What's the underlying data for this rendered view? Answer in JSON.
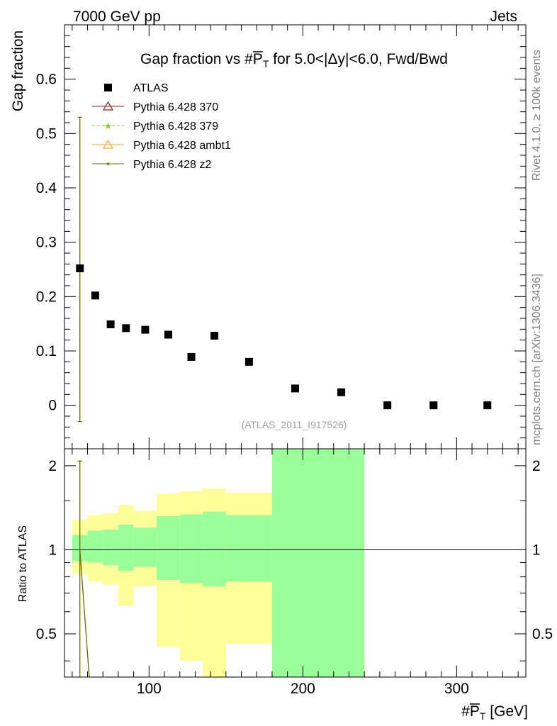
{
  "header": {
    "left": "7000 GeV pp",
    "right": "Jets"
  },
  "side_labels": {
    "rivet": "Rivet 4.1.0, ≥ 100k events",
    "mcplots": "mcplots.cern.ch [arXiv:1306.3436]"
  },
  "colors": {
    "data": "#000000",
    "p370": "#8b1a1a",
    "p379": "#7ccd32",
    "ambt1": "#f5a623",
    "z2": "#6b6b00",
    "band_inner": "#99ff99",
    "band_outer": "#ffff99"
  },
  "chart_data": [
    {
      "type": "scatter",
      "title_prefix": "Gap fraction vs #",
      "title_var": "P",
      "title_sub": "T",
      "title_suffix": " for 5.0<|Δy|<6.0, Fwd/Bwd",
      "ylabel": "Gap fraction",
      "watermark": "(ATLAS_2011_I917526)",
      "xlim": [
        45,
        345
      ],
      "ylim": [
        -0.08,
        0.7
      ],
      "yticks": [
        0,
        0.1,
        0.2,
        0.3,
        0.4,
        0.5,
        0.6
      ],
      "ytick_labels": [
        "0",
        "0.1",
        "0.2",
        "0.3",
        "0.4",
        "0.5",
        "0.6"
      ],
      "legend": [
        {
          "label": "ATLAS",
          "style": "square"
        },
        {
          "label": "Pythia 6.428 370",
          "style": "triangle"
        },
        {
          "label": "Pythia 6.428 379",
          "style": "star-dashed"
        },
        {
          "label": "Pythia 6.428 ambt1",
          "style": "triangle-line"
        },
        {
          "label": "Pythia 6.428 z2",
          "style": "dot-line"
        }
      ],
      "series": [
        {
          "name": "ATLAS",
          "x": [
            55,
            65,
            75,
            85,
            97.5,
            112.5,
            127.5,
            142.5,
            165,
            195,
            225,
            255,
            285,
            320
          ],
          "y": [
            0.252,
            0.202,
            0.149,
            0.142,
            0.139,
            0.13,
            0.089,
            0.128,
            0.08,
            0.031,
            0.024,
            0.0,
            0.0,
            0.0
          ]
        },
        {
          "name": "Pythia 6.428 z2",
          "x": [
            55
          ],
          "y": [
            0.252
          ],
          "yerr_low": [
            -0.03
          ],
          "yerr_high": [
            0.53
          ]
        }
      ]
    },
    {
      "type": "area",
      "ylabel": "Ratio to ATLAS",
      "xlabel_prefix": "#",
      "xlabel_var": "P",
      "xlabel_sub": "T",
      "xlabel_suffix": " [GeV]",
      "xlim": [
        45,
        345
      ],
      "ylim": [
        0.35,
        2.3
      ],
      "xticks": [
        100,
        200,
        300
      ],
      "xtick_labels": [
        "100",
        "200",
        "300"
      ],
      "yticks": [
        0.5,
        1,
        2
      ],
      "ytick_labels": [
        "0.5",
        "1",
        "2"
      ],
      "bins": [
        {
          "lo": 50,
          "hi": 60,
          "inner": [
            0.91,
            1.13
          ],
          "outer": [
            0.82,
            1.28
          ]
        },
        {
          "lo": 60,
          "hi": 70,
          "inner": [
            0.9,
            1.17
          ],
          "outer": [
            0.77,
            1.33
          ]
        },
        {
          "lo": 70,
          "hi": 80,
          "inner": [
            0.88,
            1.18
          ],
          "outer": [
            0.75,
            1.35
          ]
        },
        {
          "lo": 80,
          "hi": 90,
          "inner": [
            0.84,
            1.23
          ],
          "outer": [
            0.63,
            1.45
          ]
        },
        {
          "lo": 90,
          "hi": 105,
          "inner": [
            0.87,
            1.2
          ],
          "outer": [
            0.74,
            1.38
          ]
        },
        {
          "lo": 105,
          "hi": 120,
          "inner": [
            0.78,
            1.32
          ],
          "outer": [
            0.45,
            1.59
          ]
        },
        {
          "lo": 120,
          "hi": 135,
          "inner": [
            0.76,
            1.34
          ],
          "outer": [
            0.4,
            1.62
          ]
        },
        {
          "lo": 135,
          "hi": 150,
          "inner": [
            0.74,
            1.37
          ],
          "outer": [
            0.34,
            1.66
          ]
        },
        {
          "lo": 150,
          "hi": 180,
          "inner": [
            0.77,
            1.33
          ],
          "outer": [
            0.46,
            1.6
          ]
        },
        {
          "lo": 180,
          "hi": 240,
          "inner": [
            0.0,
            5.0
          ],
          "outer": [
            0.0,
            5.0
          ]
        }
      ],
      "reference": 1,
      "z2_ratio_x": [
        55
      ],
      "z2_ratio_y": [
        1.0
      ],
      "z2_err_low": [
        0.0
      ],
      "z2_err_high": [
        2.08
      ],
      "z2_line_x": [
        55,
        62
      ],
      "z2_line_y": [
        1.0,
        0.3
      ]
    }
  ]
}
